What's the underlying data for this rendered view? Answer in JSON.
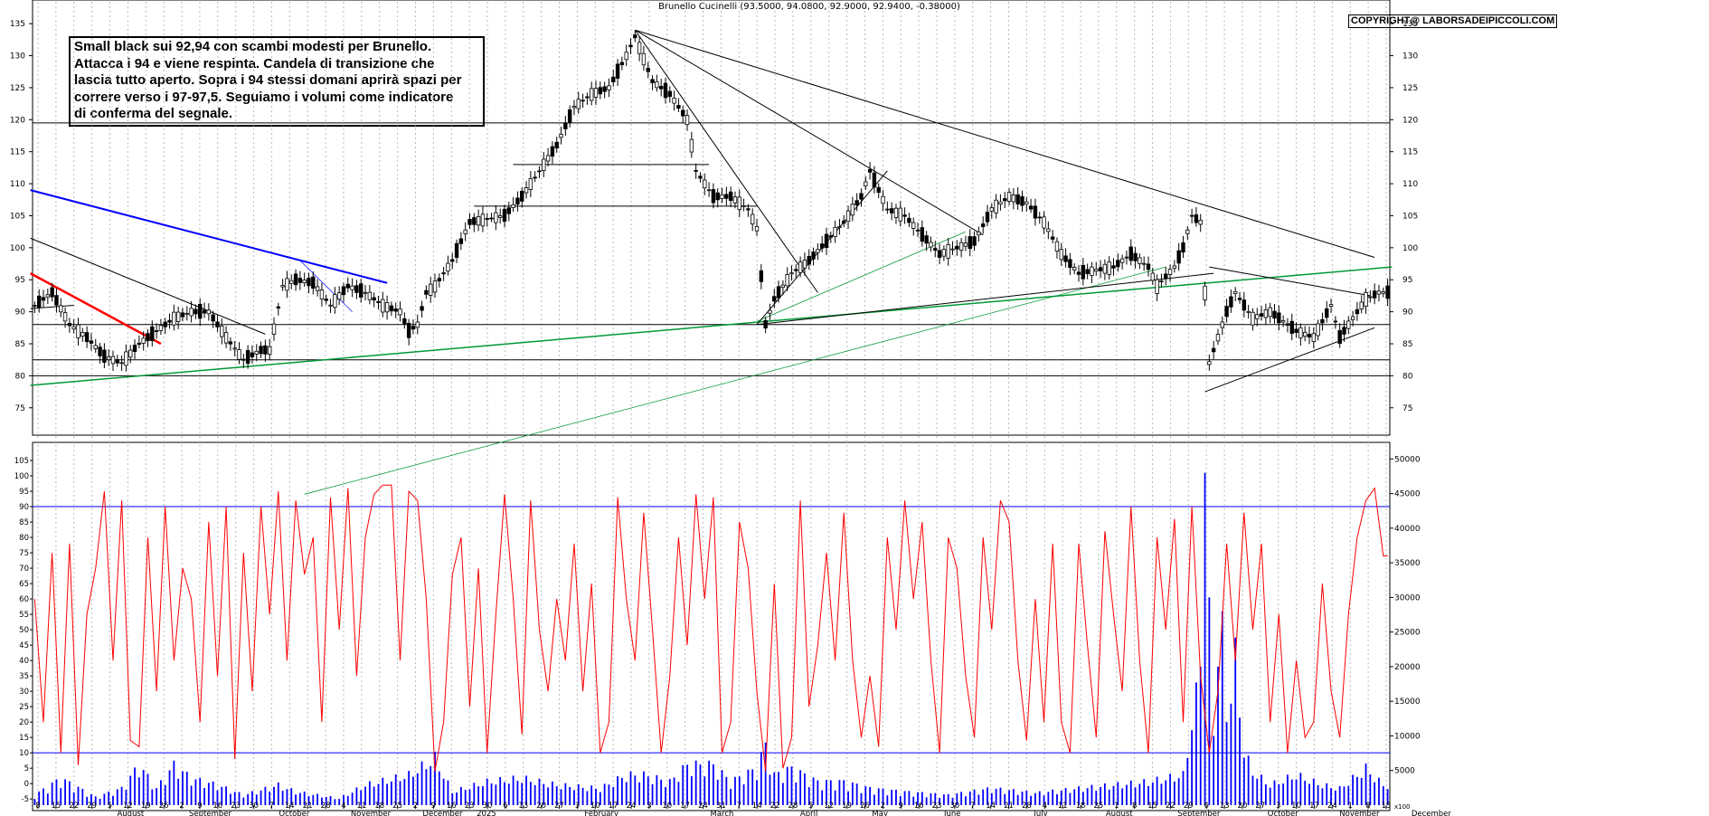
{
  "title": "Brunello Cucinelli (93.5000, 94.0800, 92.9000, 92.9400, -0.38000)",
  "copyright": "COPYRIGHT@ LABORSADEIPICCOLI.COM",
  "note_lines": [
    "Small black sui 92,94 con scambi modesti per Brunello.",
    "Attacca i 94 e viene respinta. Candela di transizione che",
    "lascia tutto aperto. Sopra i 94 stessi domani aprirà spazi per",
    "correre verso i 97-97,5. Seguiamo i volumi come indicatore",
    "di conferma del segnale."
  ],
  "colors": {
    "candle": "#000000",
    "stoch": "#ff0000",
    "volume": "#0000ff",
    "trend_green": "#009933",
    "trend_blue": "#0000ff",
    "trend_red": "#ff0000"
  },
  "chart_data": {
    "type": "candlestick",
    "price_axis": {
      "min": 72,
      "max": 137,
      "ticks": [
        75,
        80,
        85,
        90,
        95,
        100,
        105,
        110,
        115,
        120,
        125,
        130,
        135
      ]
    },
    "horizontal_levels": [
      119.5,
      88,
      82.5,
      80
    ],
    "oscillator_axis": {
      "min": -7,
      "max": 110,
      "ticks": [
        -5,
        0,
        5,
        10,
        15,
        20,
        25,
        30,
        35,
        40,
        45,
        50,
        55,
        60,
        65,
        70,
        75,
        80,
        85,
        90,
        95,
        100,
        105
      ],
      "levels": [
        90,
        10
      ]
    },
    "volume_axis": {
      "min": 0,
      "max": 52000,
      "ticks": [
        5000,
        10000,
        15000,
        20000,
        25000,
        30000,
        35000,
        40000,
        45000,
        50000
      ]
    },
    "x_day_labels": [
      "8",
      "15",
      "22",
      "29",
      "5",
      "12",
      "19",
      "26",
      "2",
      "9",
      "16",
      "23",
      "30",
      "7",
      "14",
      "21",
      "28",
      "4",
      "11",
      "18",
      "25",
      "2",
      "9",
      "16",
      "23",
      "30",
      "6",
      "13",
      "20",
      "27",
      "3",
      "10",
      "17",
      "24",
      "3",
      "10",
      "17",
      "24",
      "31",
      "7",
      "14",
      "22",
      "28",
      "5",
      "12",
      "19",
      "26",
      "2",
      "9",
      "16",
      "23",
      "30",
      "7",
      "14",
      "21",
      "28",
      "4",
      "11",
      "18",
      "25",
      "1",
      "8",
      "15",
      "22",
      "29",
      "6",
      "13",
      "20",
      "27",
      "3",
      "10",
      "17",
      "24",
      "1",
      "8",
      "15"
    ],
    "x_month_labels": [
      "August",
      "September",
      "October",
      "November",
      "December",
      "2025",
      "February",
      "March",
      "April",
      "May",
      "June",
      "July",
      "August",
      "September",
      "October",
      "November",
      "December"
    ],
    "x_axis_unit": "x100",
    "price_anchors": [
      [
        0,
        91
      ],
      [
        4,
        93
      ],
      [
        8,
        88
      ],
      [
        12,
        86
      ],
      [
        16,
        83
      ],
      [
        20,
        82
      ],
      [
        24,
        85
      ],
      [
        28,
        87
      ],
      [
        32,
        89
      ],
      [
        36,
        90
      ],
      [
        40,
        90
      ],
      [
        44,
        86
      ],
      [
        48,
        82.5
      ],
      [
        52,
        84
      ],
      [
        54,
        84
      ],
      [
        57,
        94
      ],
      [
        60,
        95
      ],
      [
        64,
        94.5
      ],
      [
        68,
        91
      ],
      [
        72,
        94
      ],
      [
        76,
        93
      ],
      [
        80,
        91
      ],
      [
        84,
        90
      ],
      [
        86,
        87
      ],
      [
        88,
        88
      ],
      [
        90,
        93
      ],
      [
        92,
        94
      ],
      [
        96,
        98
      ],
      [
        100,
        104
      ],
      [
        104,
        104.5
      ],
      [
        108,
        105
      ],
      [
        112,
        108
      ],
      [
        116,
        112
      ],
      [
        120,
        116
      ],
      [
        124,
        122
      ],
      [
        128,
        124
      ],
      [
        132,
        125
      ],
      [
        136,
        130
      ],
      [
        138,
        133
      ],
      [
        142,
        126
      ],
      [
        146,
        124
      ],
      [
        150,
        120
      ],
      [
        152,
        112
      ],
      [
        156,
        108
      ],
      [
        160,
        108
      ],
      [
        164,
        106
      ],
      [
        166,
        103
      ],
      [
        168,
        88
      ],
      [
        170,
        92
      ],
      [
        172,
        94
      ],
      [
        174,
        96
      ],
      [
        178,
        98
      ],
      [
        182,
        101
      ],
      [
        186,
        104
      ],
      [
        190,
        108
      ],
      [
        192,
        112
      ],
      [
        196,
        106
      ],
      [
        200,
        105
      ],
      [
        204,
        102
      ],
      [
        208,
        99
      ],
      [
        212,
        100
      ],
      [
        216,
        101
      ],
      [
        220,
        106
      ],
      [
        224,
        108
      ],
      [
        228,
        107
      ],
      [
        232,
        104
      ],
      [
        236,
        99
      ],
      [
        240,
        96
      ],
      [
        244,
        96.5
      ],
      [
        248,
        97
      ],
      [
        252,
        99
      ],
      [
        256,
        97
      ],
      [
        258,
        94
      ],
      [
        262,
        97
      ],
      [
        264,
        100
      ],
      [
        266,
        105
      ],
      [
        268,
        104
      ],
      [
        270,
        82
      ],
      [
        272,
        86
      ],
      [
        274,
        90
      ],
      [
        276,
        93
      ],
      [
        280,
        89
      ],
      [
        284,
        90
      ],
      [
        288,
        88
      ],
      [
        290,
        87
      ],
      [
        294,
        86
      ],
      [
        298,
        91
      ],
      [
        300,
        86
      ],
      [
        302,
        88
      ],
      [
        306,
        92
      ],
      [
        309,
        93
      ]
    ],
    "stoch_anchors": [
      [
        0,
        60
      ],
      [
        2,
        20
      ],
      [
        4,
        75
      ],
      [
        6,
        10
      ],
      [
        8,
        78
      ],
      [
        10,
        6
      ],
      [
        12,
        55
      ],
      [
        14,
        70
      ],
      [
        16,
        95
      ],
      [
        18,
        40
      ],
      [
        20,
        92
      ],
      [
        22,
        14
      ],
      [
        24,
        12
      ],
      [
        26,
        80
      ],
      [
        28,
        30
      ],
      [
        30,
        90
      ],
      [
        32,
        40
      ],
      [
        34,
        70
      ],
      [
        36,
        60
      ],
      [
        38,
        20
      ],
      [
        40,
        85
      ],
      [
        42,
        35
      ],
      [
        44,
        90
      ],
      [
        46,
        8
      ],
      [
        48,
        75
      ],
      [
        50,
        30
      ],
      [
        52,
        90
      ],
      [
        54,
        55
      ],
      [
        56,
        95
      ],
      [
        58,
        40
      ],
      [
        60,
        92
      ],
      [
        62,
        68
      ],
      [
        64,
        80
      ],
      [
        66,
        20
      ],
      [
        68,
        93
      ],
      [
        70,
        50
      ],
      [
        72,
        96
      ],
      [
        74,
        35
      ],
      [
        76,
        80
      ],
      [
        78,
        94
      ],
      [
        80,
        97
      ],
      [
        82,
        97
      ],
      [
        84,
        40
      ],
      [
        86,
        95
      ],
      [
        88,
        92
      ],
      [
        90,
        60
      ],
      [
        92,
        4
      ],
      [
        94,
        20
      ],
      [
        96,
        68
      ],
      [
        98,
        80
      ],
      [
        100,
        25
      ],
      [
        102,
        70
      ],
      [
        104,
        10
      ],
      [
        106,
        55
      ],
      [
        108,
        94
      ],
      [
        110,
        60
      ],
      [
        112,
        16
      ],
      [
        114,
        92
      ],
      [
        116,
        50
      ],
      [
        118,
        30
      ],
      [
        120,
        60
      ],
      [
        122,
        40
      ],
      [
        124,
        78
      ],
      [
        126,
        30
      ],
      [
        128,
        65
      ],
      [
        130,
        10
      ],
      [
        132,
        20
      ],
      [
        134,
        93
      ],
      [
        136,
        60
      ],
      [
        138,
        40
      ],
      [
        140,
        88
      ],
      [
        142,
        50
      ],
      [
        144,
        10
      ],
      [
        146,
        35
      ],
      [
        148,
        80
      ],
      [
        150,
        45
      ],
      [
        152,
        94
      ],
      [
        154,
        60
      ],
      [
        156,
        93
      ],
      [
        158,
        10
      ],
      [
        160,
        20
      ],
      [
        162,
        85
      ],
      [
        164,
        70
      ],
      [
        166,
        30
      ],
      [
        168,
        4
      ],
      [
        170,
        65
      ],
      [
        172,
        5
      ],
      [
        174,
        15
      ],
      [
        176,
        92
      ],
      [
        178,
        25
      ],
      [
        180,
        45
      ],
      [
        182,
        75
      ],
      [
        184,
        40
      ],
      [
        186,
        88
      ],
      [
        188,
        40
      ],
      [
        190,
        15
      ],
      [
        192,
        35
      ],
      [
        194,
        12
      ],
      [
        196,
        80
      ],
      [
        198,
        50
      ],
      [
        200,
        92
      ],
      [
        202,
        60
      ],
      [
        204,
        85
      ],
      [
        206,
        40
      ],
      [
        208,
        10
      ],
      [
        210,
        80
      ],
      [
        212,
        70
      ],
      [
        214,
        35
      ],
      [
        216,
        15
      ],
      [
        218,
        80
      ],
      [
        220,
        50
      ],
      [
        222,
        92
      ],
      [
        224,
        85
      ],
      [
        226,
        40
      ],
      [
        228,
        14
      ],
      [
        230,
        60
      ],
      [
        232,
        20
      ],
      [
        234,
        78
      ],
      [
        236,
        20
      ],
      [
        238,
        10
      ],
      [
        240,
        78
      ],
      [
        242,
        45
      ],
      [
        244,
        15
      ],
      [
        246,
        82
      ],
      [
        248,
        55
      ],
      [
        250,
        30
      ],
      [
        252,
        90
      ],
      [
        254,
        40
      ],
      [
        256,
        10
      ],
      [
        258,
        80
      ],
      [
        260,
        50
      ],
      [
        262,
        86
      ],
      [
        264,
        20
      ],
      [
        266,
        90
      ],
      [
        268,
        35
      ],
      [
        270,
        10
      ],
      [
        272,
        30
      ],
      [
        274,
        78
      ],
      [
        276,
        40
      ],
      [
        278,
        88
      ],
      [
        280,
        50
      ],
      [
        282,
        78
      ],
      [
        284,
        20
      ],
      [
        286,
        55
      ],
      [
        288,
        10
      ],
      [
        290,
        40
      ],
      [
        292,
        15
      ],
      [
        294,
        20
      ],
      [
        296,
        65
      ],
      [
        298,
        30
      ],
      [
        300,
        15
      ],
      [
        302,
        55
      ],
      [
        304,
        80
      ],
      [
        306,
        92
      ],
      [
        308,
        96
      ],
      [
        310,
        74
      ]
    ],
    "volume_anchors": [
      [
        0,
        1500
      ],
      [
        6,
        4000
      ],
      [
        14,
        1200
      ],
      [
        20,
        2500
      ],
      [
        24,
        6000
      ],
      [
        28,
        2500
      ],
      [
        32,
        6000
      ],
      [
        36,
        4000
      ],
      [
        42,
        3000
      ],
      [
        48,
        1500
      ],
      [
        56,
        3000
      ],
      [
        60,
        2000
      ],
      [
        70,
        1000
      ],
      [
        76,
        3000
      ],
      [
        86,
        4500
      ],
      [
        92,
        7000
      ],
      [
        96,
        2000
      ],
      [
        104,
        3500
      ],
      [
        112,
        4000
      ],
      [
        120,
        3000
      ],
      [
        130,
        2500
      ],
      [
        136,
        4500
      ],
      [
        140,
        4500
      ],
      [
        146,
        3500
      ],
      [
        150,
        6000
      ],
      [
        156,
        6000
      ],
      [
        160,
        3500
      ],
      [
        166,
        5500
      ],
      [
        168,
        9000
      ],
      [
        170,
        4500
      ],
      [
        174,
        5500
      ],
      [
        180,
        3500
      ],
      [
        186,
        3500
      ],
      [
        192,
        2500
      ],
      [
        200,
        2000
      ],
      [
        210,
        1500
      ],
      [
        220,
        2500
      ],
      [
        230,
        1800
      ],
      [
        240,
        2500
      ],
      [
        248,
        3000
      ],
      [
        256,
        3500
      ],
      [
        264,
        4500
      ],
      [
        268,
        20000
      ],
      [
        269,
        48000
      ],
      [
        270,
        30000
      ],
      [
        271,
        10000
      ],
      [
        272,
        20000
      ],
      [
        273,
        28000
      ],
      [
        274,
        12000
      ],
      [
        276,
        22000
      ],
      [
        278,
        8000
      ],
      [
        280,
        5000
      ],
      [
        284,
        3000
      ],
      [
        290,
        4500
      ],
      [
        296,
        3000
      ],
      [
        300,
        2500
      ],
      [
        304,
        4500
      ],
      [
        306,
        5500
      ],
      [
        310,
        3000
      ]
    ]
  }
}
